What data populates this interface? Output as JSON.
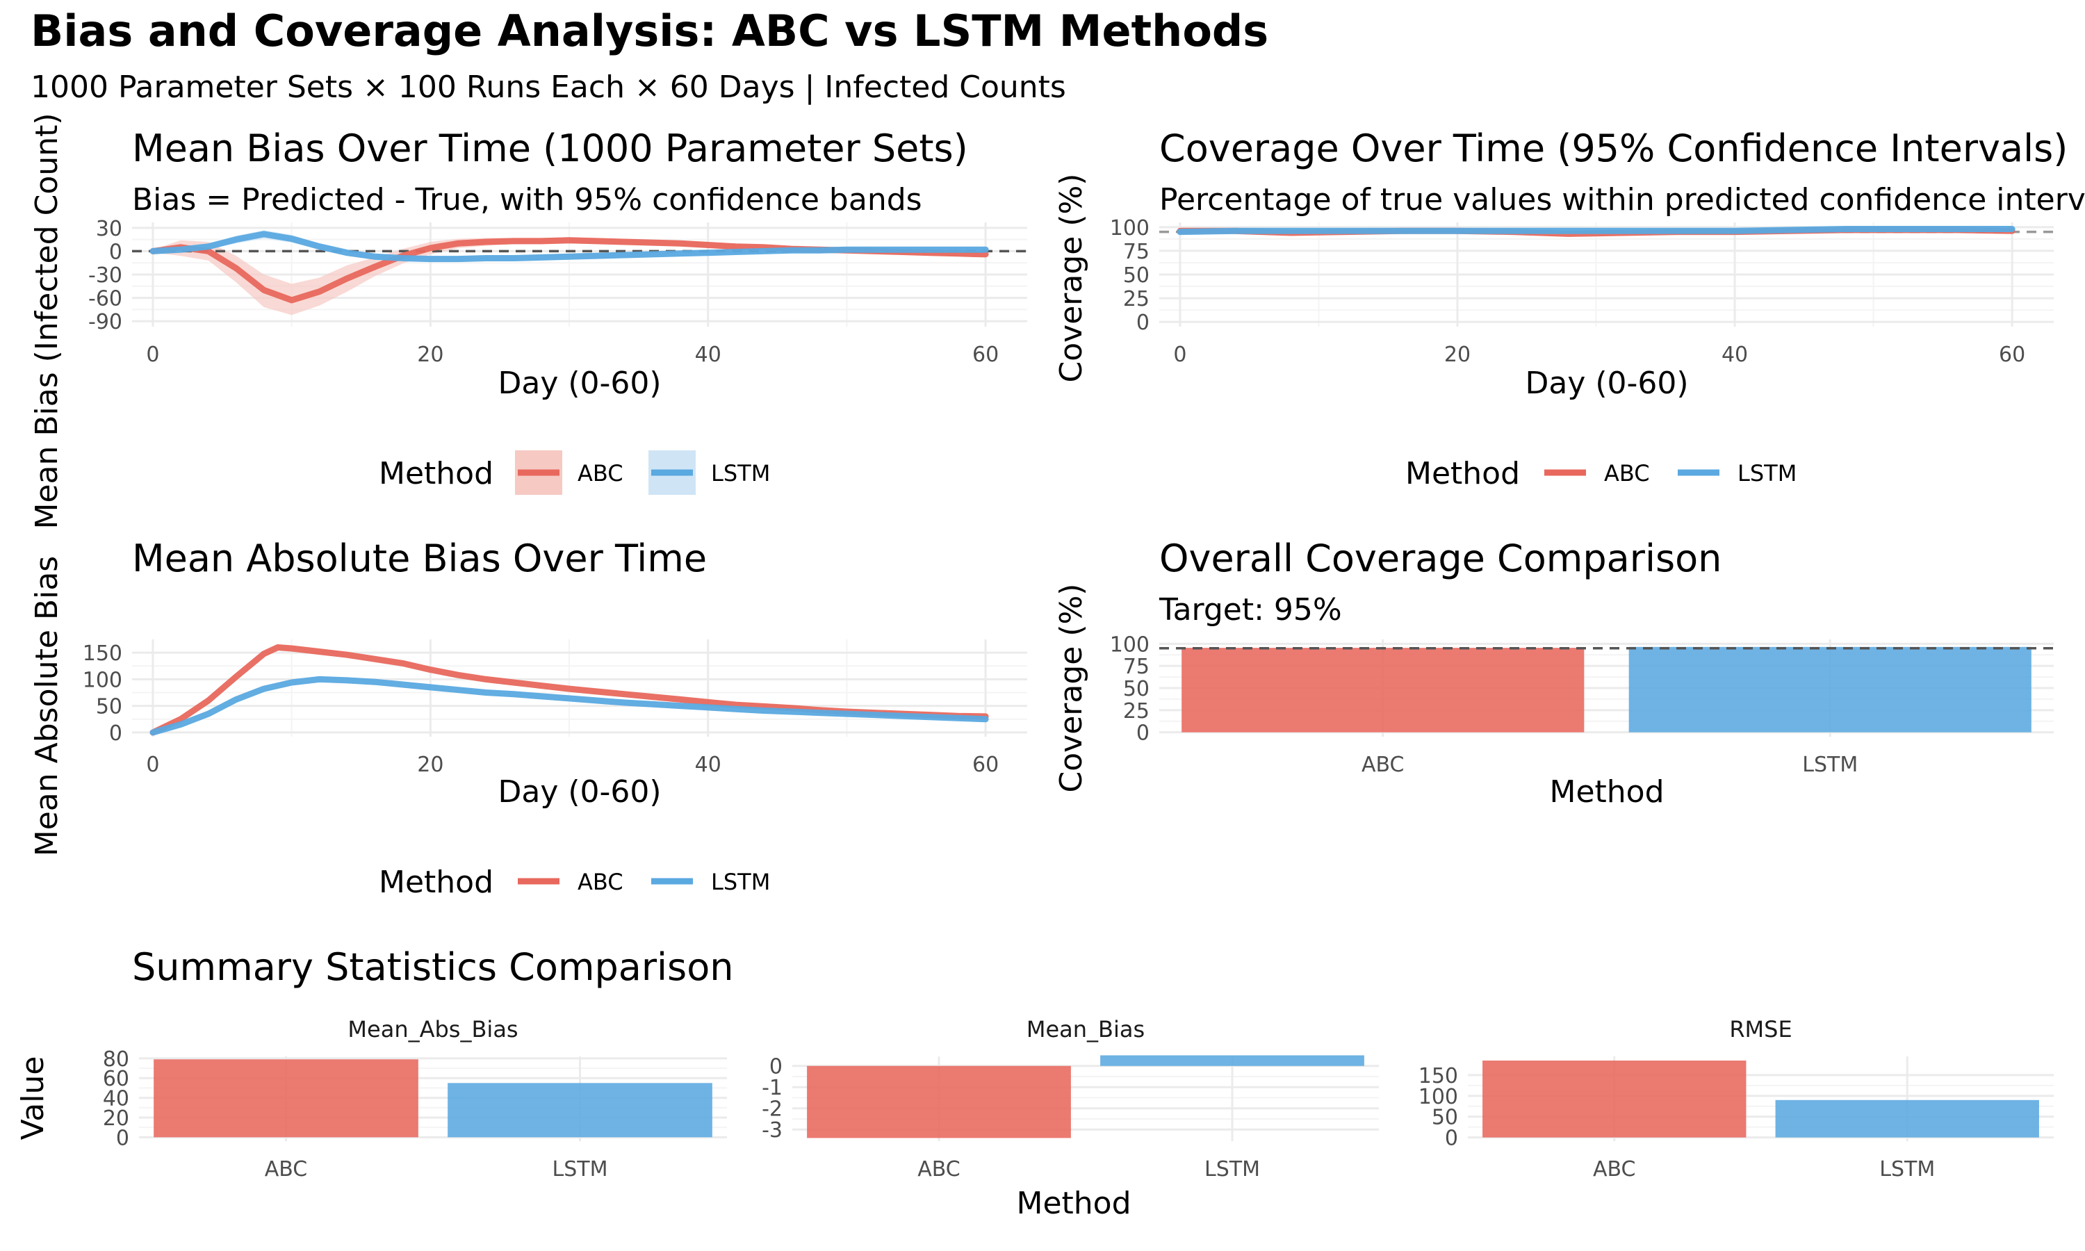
{
  "title": "Bias and Coverage Analysis: ABC vs LSTM Methods",
  "subtitle": "1000 Parameter Sets × 100 Runs Each × 60 Days | Infected Counts",
  "colors": {
    "ABC": "#e8685d",
    "LSTM": "#5aa9e0",
    "ABC_band": "#f6c9c3",
    "LSTM_band": "#cfe5f6",
    "ref": "#555555"
  },
  "legend": {
    "title": "Method",
    "items": [
      "ABC",
      "LSTM"
    ]
  },
  "chart_data": [
    {
      "id": "mean-bias",
      "type": "line",
      "title": "Mean Bias Over Time (1000 Parameter Sets)",
      "subtitle": "Bias = Predicted - True, with 95% confidence bands",
      "xlabel": "Day (0-60)",
      "ylabel": "Mean Bias (Infected Count)",
      "xlim": [
        -1.5,
        63
      ],
      "ylim": [
        -97,
        37
      ],
      "xticks": [
        0,
        20,
        40,
        60
      ],
      "yticks": [
        30,
        0,
        -30,
        -60,
        -90
      ],
      "reference_line": 0,
      "grid": true,
      "legend_position": "bottom",
      "series": [
        {
          "name": "ABC",
          "x": [
            0,
            2,
            4,
            6,
            8,
            10,
            12,
            14,
            16,
            18,
            20,
            22,
            24,
            26,
            28,
            30,
            32,
            34,
            36,
            38,
            40,
            42,
            44,
            46,
            48,
            50,
            52,
            54,
            56,
            58,
            60
          ],
          "y": [
            0,
            5,
            0,
            -22,
            -50,
            -63,
            -52,
            -35,
            -20,
            -6,
            4,
            10,
            12,
            13,
            13,
            14,
            13,
            12,
            11,
            10,
            8,
            6,
            5,
            3,
            2,
            1,
            0,
            -1,
            -2,
            -3,
            -4
          ],
          "band_low": [
            -2,
            -6,
            -12,
            -40,
            -72,
            -82,
            -70,
            -52,
            -32,
            -16,
            -4,
            4,
            7,
            9,
            9,
            10,
            10,
            9,
            8,
            7,
            5,
            3,
            2,
            0,
            -1,
            -2,
            -3,
            -4,
            -5,
            -6,
            -7
          ],
          "band_high": [
            2,
            14,
            12,
            -6,
            -30,
            -42,
            -34,
            -18,
            -8,
            3,
            12,
            16,
            17,
            17,
            17,
            18,
            16,
            15,
            14,
            13,
            11,
            9,
            8,
            6,
            5,
            4,
            3,
            2,
            1,
            0,
            -1
          ]
        },
        {
          "name": "LSTM",
          "x": [
            0,
            2,
            4,
            6,
            8,
            10,
            12,
            14,
            16,
            18,
            20,
            22,
            24,
            26,
            28,
            30,
            32,
            34,
            36,
            38,
            40,
            42,
            44,
            46,
            48,
            50,
            52,
            54,
            56,
            58,
            60
          ],
          "y": [
            0,
            2,
            6,
            15,
            22,
            16,
            6,
            -2,
            -7,
            -9,
            -10,
            -10,
            -9,
            -9,
            -8,
            -7,
            -6,
            -5,
            -4,
            -3,
            -2,
            -1,
            0,
            1,
            1,
            2,
            2,
            2,
            2,
            2,
            2
          ],
          "band_low": [
            -1,
            0,
            3,
            10,
            16,
            11,
            2,
            -6,
            -11,
            -13,
            -14,
            -13,
            -12,
            -12,
            -11,
            -10,
            -9,
            -8,
            -7,
            -6,
            -5,
            -4,
            -3,
            -2,
            -2,
            -1,
            -1,
            -1,
            -1,
            -1,
            -1
          ],
          "band_high": [
            1,
            4,
            9,
            20,
            27,
            21,
            10,
            2,
            -3,
            -5,
            -6,
            -7,
            -6,
            -6,
            -5,
            -4,
            -3,
            -2,
            -1,
            0,
            1,
            2,
            3,
            4,
            4,
            5,
            5,
            5,
            5,
            5,
            5
          ]
        }
      ]
    },
    {
      "id": "coverage-time",
      "type": "line",
      "title": "Coverage Over Time (95% Confidence Intervals)",
      "subtitle": "Percentage of true values within predicted confidence intervals",
      "xlabel": "Day (0-60)",
      "ylabel": "Coverage (%)",
      "xlim": [
        -1.5,
        63
      ],
      "ylim": [
        -5,
        105
      ],
      "xticks": [
        0,
        20,
        40,
        60
      ],
      "yticks": [
        100,
        75,
        50,
        25,
        0
      ],
      "reference_line": 95,
      "grid": true,
      "legend_position": "bottom",
      "series": [
        {
          "name": "ABC",
          "x": [
            0,
            4,
            8,
            12,
            16,
            20,
            24,
            28,
            32,
            36,
            40,
            44,
            48,
            52,
            56,
            60
          ],
          "y": [
            96,
            96,
            94,
            95,
            96,
            96,
            95,
            93,
            94,
            95,
            95,
            96,
            97,
            97,
            97,
            96
          ]
        },
        {
          "name": "LSTM",
          "x": [
            0,
            4,
            8,
            12,
            16,
            20,
            24,
            28,
            32,
            36,
            40,
            44,
            48,
            52,
            56,
            60
          ],
          "y": [
            95,
            96,
            96,
            96,
            96,
            96,
            96,
            96,
            96,
            96,
            96,
            97,
            98,
            98,
            98,
            98
          ]
        }
      ]
    },
    {
      "id": "mean-abs-bias",
      "type": "line",
      "title": "Mean Absolute Bias Over Time",
      "xlabel": "Day (0-60)",
      "ylabel": "Mean Absolute Bias",
      "xlim": [
        -1.5,
        63
      ],
      "ylim": [
        -8,
        175
      ],
      "xticks": [
        0,
        20,
        40,
        60
      ],
      "yticks": [
        150,
        100,
        50,
        0
      ],
      "grid": true,
      "legend_position": "bottom",
      "series": [
        {
          "name": "ABC",
          "x": [
            0,
            2,
            4,
            6,
            8,
            9,
            10,
            12,
            14,
            16,
            18,
            20,
            22,
            24,
            26,
            28,
            30,
            32,
            34,
            36,
            38,
            40,
            42,
            44,
            46,
            48,
            50,
            52,
            54,
            56,
            58,
            60
          ],
          "y": [
            0,
            25,
            60,
            105,
            148,
            160,
            158,
            152,
            146,
            138,
            130,
            118,
            108,
            100,
            94,
            88,
            82,
            77,
            72,
            67,
            62,
            57,
            52,
            49,
            46,
            42,
            39,
            37,
            35,
            33,
            31,
            30
          ]
        },
        {
          "name": "LSTM",
          "x": [
            0,
            2,
            4,
            6,
            8,
            10,
            12,
            14,
            16,
            18,
            20,
            22,
            24,
            26,
            28,
            30,
            32,
            34,
            36,
            38,
            40,
            42,
            44,
            46,
            48,
            50,
            52,
            54,
            56,
            58,
            60
          ],
          "y": [
            0,
            15,
            35,
            62,
            82,
            94,
            100,
            98,
            95,
            90,
            85,
            80,
            75,
            72,
            68,
            64,
            60,
            56,
            53,
            50,
            47,
            44,
            41,
            39,
            37,
            35,
            33,
            31,
            29,
            27,
            25
          ]
        }
      ]
    },
    {
      "id": "overall-coverage",
      "type": "bar",
      "title": "Overall Coverage Comparison",
      "subtitle": "Target: 95%",
      "xlabel": "Method",
      "ylabel": "Coverage (%)",
      "categories": [
        "ABC",
        "LSTM"
      ],
      "values": [
        95.5,
        96.5
      ],
      "ylim": [
        -5,
        105
      ],
      "yticks": [
        100,
        75,
        50,
        25,
        0
      ],
      "reference_line": 95,
      "grid": true
    },
    {
      "id": "summary",
      "type": "bar",
      "title": "Summary Statistics Comparison",
      "xlabel": "Method",
      "ylabel": "Value",
      "categories": [
        "ABC",
        "LSTM"
      ],
      "facets": [
        {
          "name": "Mean_Abs_Bias",
          "values": [
            79,
            55
          ],
          "ylim": [
            -4,
            82
          ],
          "yticks": [
            80,
            60,
            40,
            20,
            0
          ]
        },
        {
          "name": "Mean_Bias",
          "values": [
            -3.4,
            0.5
          ],
          "ylim": [
            -3.55,
            0.45
          ],
          "yticks": [
            0,
            -1,
            -2,
            -3
          ]
        },
        {
          "name": "RMSE",
          "values": [
            185,
            90
          ],
          "ylim": [
            -9,
            195
          ],
          "yticks": [
            150,
            100,
            50,
            0
          ]
        }
      ],
      "grid": true
    }
  ]
}
